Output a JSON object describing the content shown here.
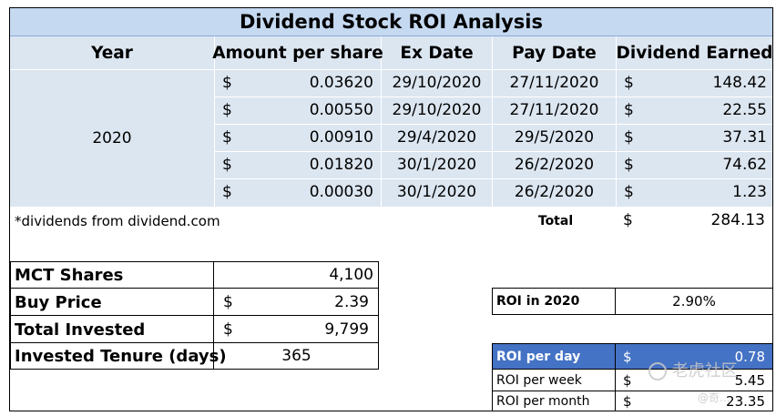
{
  "title": "Dividend Stock ROI Analysis",
  "headers": {
    "year": "Year",
    "amount": "Amount per share",
    "ex_date": "Ex Date",
    "pay_date": "Pay Date",
    "dividend": "Dividend Earned"
  },
  "year_value": "2020",
  "currency": "$",
  "rows": [
    {
      "amount": "0.03620",
      "ex": "29/10/2020",
      "pay": "27/11/2020",
      "div": "148.42"
    },
    {
      "amount": "0.00550",
      "ex": "29/10/2020",
      "pay": "27/11/2020",
      "div": "22.55"
    },
    {
      "amount": "0.00910",
      "ex": "29/4/2020",
      "pay": "29/5/2020",
      "div": "37.31"
    },
    {
      "amount": "0.01820",
      "ex": "30/1/2020",
      "pay": "26/2/2020",
      "div": "74.62"
    },
    {
      "amount": "0.00030",
      "ex": "30/1/2020",
      "pay": "26/2/2020",
      "div": "1.23"
    }
  ],
  "footnote": "*dividends from dividend.com",
  "total_label": "Total",
  "total_value": "284.13",
  "summary": {
    "shares_label": "MCT Shares",
    "shares_value": "4,100",
    "price_label": "Buy Price",
    "price_value": "2.39",
    "invested_label": "Total Invested",
    "invested_value": "9,799",
    "tenure_label": "Invested Tenure (days)",
    "tenure_value": "365"
  },
  "roi_year": {
    "label": "ROI in 2020",
    "value": "2.90%"
  },
  "roi_breakdown": {
    "day_label": "ROI per day",
    "day_value": "0.78",
    "week_label": "ROI per week",
    "week_value": "5.45",
    "month_label": "ROI per month",
    "month_value": "23.35"
  },
  "colors": {
    "title_bg": "#c5d9f1",
    "table_bg": "#dce6f1",
    "roi_day_bg": "#4472c4"
  },
  "watermark": {
    "line1": "老虎社区",
    "line2": "@奇..."
  }
}
